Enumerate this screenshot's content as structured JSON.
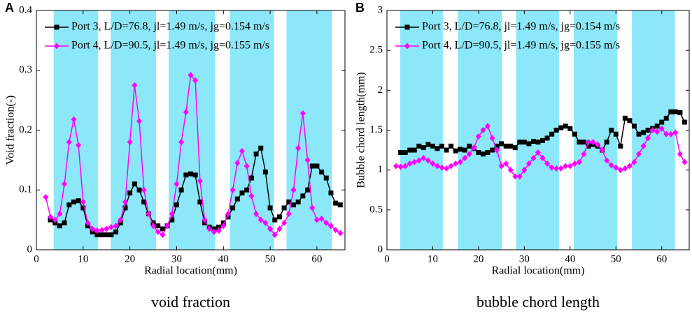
{
  "chart_data": [
    {
      "type": "line",
      "panel_label": "A",
      "caption": "void fraction",
      "x_label": "Radial location(mm)",
      "y_label": "Void fraction(-)",
      "xlim": [
        0,
        66
      ],
      "xticks": [
        0,
        10,
        20,
        30,
        40,
        50,
        60
      ],
      "ylim": [
        0,
        0.4
      ],
      "yticks": [
        0,
        0.1,
        0.2,
        0.3,
        0.4
      ],
      "band_color": "#8ce8f8",
      "shaded_regions": [
        [
          3.7,
          13.2
        ],
        [
          15.9,
          25.6
        ],
        [
          28.3,
          38.2
        ],
        [
          41.4,
          50.8
        ],
        [
          53.5,
          63.2
        ]
      ],
      "legend": "upper left",
      "series": [
        {
          "name": "Port 3, L/D=76.8, jl=1.49 m/s, jg=0.154 m/s",
          "color": "#000000",
          "marker": "square",
          "x": [
            3,
            4,
            5,
            6,
            7,
            8,
            9,
            10,
            11,
            12,
            13,
            14,
            15,
            16,
            17,
            18,
            19,
            20,
            21,
            22,
            23,
            24,
            25,
            26,
            27,
            28,
            29,
            30,
            31,
            32,
            33,
            34,
            35,
            36,
            37,
            38,
            39,
            40,
            41,
            42,
            43,
            44,
            45,
            46,
            47,
            48,
            49,
            50,
            51,
            52,
            53,
            54,
            55,
            56,
            57,
            58,
            59,
            60,
            61,
            62,
            63,
            64,
            65
          ],
          "values": [
            0.05,
            0.045,
            0.04,
            0.045,
            0.075,
            0.08,
            0.082,
            0.07,
            0.04,
            0.03,
            0.025,
            0.025,
            0.025,
            0.025,
            0.03,
            0.045,
            0.07,
            0.095,
            0.11,
            0.1,
            0.08,
            0.06,
            0.045,
            0.04,
            0.035,
            0.04,
            0.05,
            0.075,
            0.1,
            0.125,
            0.127,
            0.125,
            0.08,
            0.045,
            0.038,
            0.035,
            0.038,
            0.045,
            0.055,
            0.07,
            0.085,
            0.095,
            0.1,
            0.12,
            0.16,
            0.17,
            0.13,
            0.07,
            0.05,
            0.055,
            0.07,
            0.08,
            0.075,
            0.08,
            0.09,
            0.1,
            0.14,
            0.14,
            0.13,
            0.12,
            0.095,
            0.078,
            0.075
          ]
        },
        {
          "name": "Port 4, L/D=90.5, jl=1.49 m/s, jg=0.155 m/s",
          "color": "#ff00ff",
          "marker": "diamond",
          "x": [
            2,
            3,
            4,
            5,
            6,
            7,
            8,
            9,
            10,
            11,
            12,
            13,
            14,
            15,
            16,
            17,
            18,
            19,
            20,
            21,
            22,
            23,
            24,
            25,
            26,
            27,
            28,
            29,
            30,
            31,
            32,
            33,
            34,
            35,
            36,
            37,
            38,
            39,
            40,
            41,
            42,
            43,
            44,
            45,
            46,
            47,
            48,
            49,
            50,
            51,
            52,
            53,
            54,
            55,
            56,
            57,
            58,
            59,
            60,
            61,
            62,
            63,
            64,
            65
          ],
          "values": [
            0.088,
            0.055,
            0.05,
            0.06,
            0.11,
            0.18,
            0.218,
            0.175,
            0.08,
            0.045,
            0.035,
            0.032,
            0.033,
            0.035,
            0.038,
            0.04,
            0.05,
            0.08,
            0.18,
            0.275,
            0.215,
            0.1,
            0.06,
            0.04,
            0.03,
            0.025,
            0.04,
            0.06,
            0.11,
            0.18,
            0.23,
            0.292,
            0.283,
            0.115,
            0.05,
            0.035,
            0.03,
            0.032,
            0.04,
            0.06,
            0.1,
            0.145,
            0.165,
            0.14,
            0.09,
            0.06,
            0.05,
            0.045,
            0.035,
            0.025,
            0.035,
            0.045,
            0.06,
            0.1,
            0.17,
            0.228,
            0.15,
            0.07,
            0.05,
            0.052,
            0.045,
            0.04,
            0.033,
            0.028
          ]
        }
      ]
    },
    {
      "type": "line",
      "panel_label": "B",
      "caption": "bubble chord length",
      "x_label": "Radial location(mm)",
      "y_label": "Bubble chord length(mm)",
      "xlim": [
        0,
        66
      ],
      "xticks": [
        0,
        10,
        20,
        30,
        40,
        50,
        60
      ],
      "ylim": [
        0,
        3
      ],
      "yticks": [
        0,
        0.5,
        1,
        1.5,
        2,
        2.5,
        3
      ],
      "band_color": "#8ce8f8",
      "shaded_regions": [
        [
          2.9,
          12.2
        ],
        [
          15.5,
          25.1
        ],
        [
          28.2,
          37.6
        ],
        [
          40.8,
          50.3
        ],
        [
          53.5,
          62.9
        ]
      ],
      "legend": "upper left",
      "series": [
        {
          "name": "Port 3, L/D=76.8, jl=1.49 m/s, jg=0.154 m/s",
          "color": "#000000",
          "marker": "square",
          "x": [
            3,
            4,
            5,
            6,
            7,
            8,
            9,
            10,
            11,
            12,
            13,
            14,
            15,
            16,
            17,
            18,
            19,
            20,
            21,
            22,
            23,
            24,
            25,
            26,
            27,
            28,
            29,
            30,
            31,
            32,
            33,
            34,
            35,
            36,
            37,
            38,
            39,
            40,
            41,
            42,
            43,
            44,
            45,
            46,
            47,
            48,
            49,
            50,
            51,
            52,
            53,
            54,
            55,
            56,
            57,
            58,
            59,
            60,
            61,
            62,
            63,
            64,
            65
          ],
          "values": [
            1.22,
            1.22,
            1.25,
            1.25,
            1.3,
            1.28,
            1.32,
            1.3,
            1.27,
            1.3,
            1.25,
            1.3,
            1.24,
            1.26,
            1.25,
            1.3,
            1.27,
            1.22,
            1.2,
            1.22,
            1.25,
            1.3,
            1.33,
            1.3,
            1.3,
            1.28,
            1.35,
            1.35,
            1.33,
            1.36,
            1.35,
            1.37,
            1.4,
            1.45,
            1.5,
            1.53,
            1.55,
            1.52,
            1.45,
            1.35,
            1.35,
            1.3,
            1.32,
            1.3,
            1.25,
            1.35,
            1.5,
            1.45,
            1.3,
            1.65,
            1.62,
            1.55,
            1.45,
            1.47,
            1.5,
            1.52,
            1.55,
            1.6,
            1.65,
            1.73,
            1.73,
            1.72,
            1.6
          ]
        },
        {
          "name": "Port 4, L/D=90.5, jl=1.49 m/s, jg=0.155 m/s",
          "color": "#ff00ff",
          "marker": "diamond",
          "x": [
            2,
            3,
            4,
            5,
            6,
            7,
            8,
            9,
            10,
            11,
            12,
            13,
            14,
            15,
            16,
            17,
            18,
            19,
            20,
            21,
            22,
            23,
            24,
            25,
            26,
            27,
            28,
            29,
            30,
            31,
            32,
            33,
            34,
            35,
            36,
            37,
            38,
            39,
            40,
            41,
            42,
            43,
            44,
            45,
            46,
            47,
            48,
            49,
            50,
            51,
            52,
            53,
            54,
            55,
            56,
            57,
            58,
            59,
            60,
            61,
            62,
            63,
            64,
            65
          ],
          "values": [
            1.05,
            1.04,
            1.05,
            1.08,
            1.1,
            1.12,
            1.15,
            1.12,
            1.08,
            1.05,
            1.03,
            1.02,
            1.05,
            1.08,
            1.1,
            1.15,
            1.2,
            1.28,
            1.42,
            1.5,
            1.55,
            1.4,
            1.25,
            1.05,
            1.08,
            1.0,
            0.92,
            0.92,
            1.0,
            1.08,
            1.15,
            1.22,
            1.15,
            1.08,
            1.03,
            1.02,
            1.02,
            1.05,
            1.05,
            1.08,
            1.1,
            1.2,
            1.35,
            1.35,
            1.32,
            1.25,
            1.12,
            1.06,
            1.03,
            1.0,
            1.02,
            1.05,
            1.1,
            1.2,
            1.3,
            1.4,
            1.5,
            1.48,
            1.52,
            1.45,
            1.45,
            1.47,
            1.2,
            1.1
          ]
        }
      ]
    }
  ]
}
